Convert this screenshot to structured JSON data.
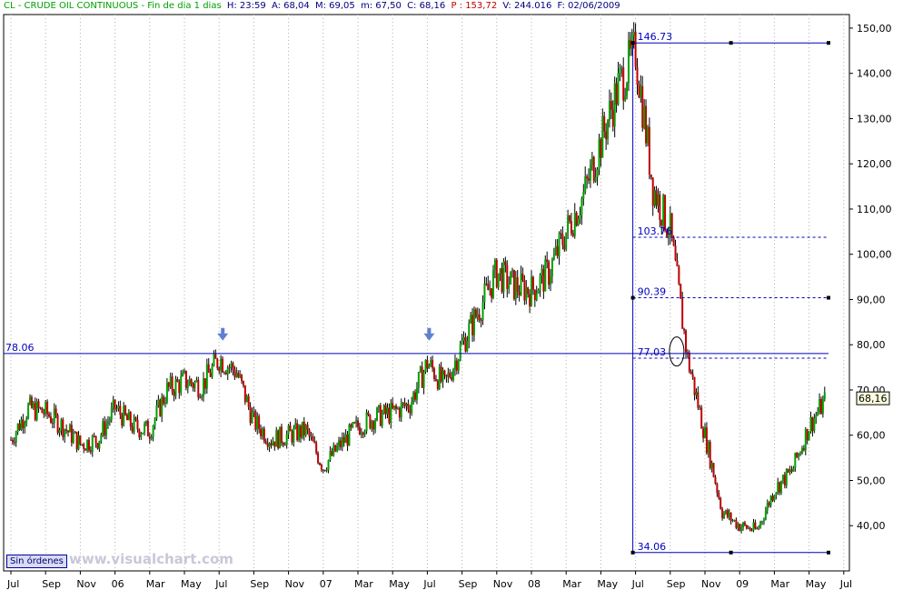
{
  "header": {
    "symbol": "CL - CRUDE OIL CONTINUOUS - Fin de dia 1 dias",
    "h": "H: 23:59",
    "a": "A: 68,04",
    "m": "M: 69,05",
    "mn": "m: 67,50",
    "c": "C: 68,16",
    "p": "P : 153,72",
    "v": "V: 244.016",
    "f": "F: 02/06/2009"
  },
  "badge": "Sin órdenes",
  "watermark": "www.visualchart.com",
  "colors": {
    "axis_line": "#0000c0",
    "level_line": "#0000c0",
    "up_candle": "#00a000",
    "down_candle": "#c00000",
    "grid": "#b0b0b0",
    "arrow": "#6080d0",
    "price_tag_bg": "#ffffe0"
  },
  "chart_data": {
    "type": "candlestick",
    "title": "CL - CRUDE OIL CONTINUOUS",
    "ylim": [
      30,
      153
    ],
    "y_ticks": [
      "150,00",
      "140,00",
      "130,00",
      "120,00",
      "110,00",
      "100,00",
      "90,00",
      "80,00",
      "70,00",
      "60,00",
      "50,00",
      "40,00"
    ],
    "x_labels": [
      "Jul",
      "Sep",
      "Nov",
      "06",
      "Mar",
      "May",
      "Jul",
      "Sep",
      "Nov",
      "07",
      "Mar",
      "May",
      "Jul",
      "Sep",
      "Nov",
      "08",
      "Mar",
      "May",
      "Jul",
      "Sep",
      "Nov",
      "09",
      "Mar",
      "May",
      "Jul"
    ],
    "series": [
      {
        "path_dates": [
          "2005-07",
          "2005-08",
          "2005-09",
          "2005-10",
          "2005-11",
          "2005-12",
          "2006-01",
          "2006-02",
          "2006-03",
          "2006-04",
          "2006-05",
          "2006-06",
          "2006-07",
          "2006-08",
          "2006-09",
          "2006-10",
          "2006-11",
          "2006-12",
          "2007-01",
          "2007-02",
          "2007-03",
          "2007-04",
          "2007-05",
          "2007-06",
          "2007-07",
          "2007-08",
          "2007-09",
          "2007-10",
          "2007-11",
          "2007-12",
          "2008-01",
          "2008-02",
          "2008-03",
          "2008-04",
          "2008-05",
          "2008-06",
          "2008-07",
          "2008-08",
          "2008-09",
          "2008-10",
          "2008-11",
          "2008-12",
          "2009-01",
          "2009-02",
          "2009-03",
          "2009-04",
          "2009-05",
          "2009-06"
        ],
        "path_values": [
          59,
          66,
          65,
          62,
          58,
          59,
          66,
          62,
          61,
          70,
          72,
          71,
          77,
          74,
          63,
          59,
          60,
          61,
          53,
          58,
          62,
          64,
          65,
          67,
          76,
          71,
          80,
          88,
          96,
          93,
          92,
          96,
          105,
          113,
          125,
          137,
          145,
          115,
          105,
          77,
          60,
          43,
          40,
          39,
          48,
          52,
          62,
          68.16
        ]
      }
    ],
    "levels": [
      {
        "label": "146.73",
        "value": 146.73
      },
      {
        "label": "103.76",
        "value": 103.76
      },
      {
        "label": "90.39",
        "value": 90.39
      },
      {
        "label": "78.06",
        "value": 78.06
      },
      {
        "label": "77.03",
        "value": 77.03
      },
      {
        "label": "34.06",
        "value": 34.06
      }
    ],
    "last_price": "68,16",
    "grid": true
  }
}
